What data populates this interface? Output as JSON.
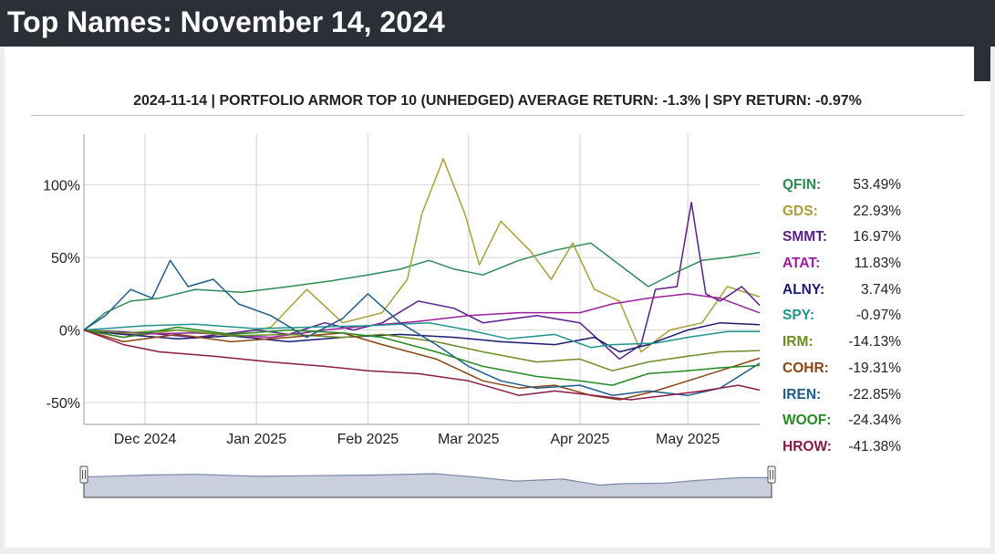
{
  "page": {
    "title": "Top Names: November 14, 2024"
  },
  "chart_data": {
    "type": "line",
    "title": "2024-11-14 | PORTFOLIO ARMOR TOP 10 (UNHEDGED) AVERAGE RETURN: -1.3% | SPY RETURN: -0.97%",
    "xlabel": "",
    "ylabel": "",
    "x_range": [
      "2024-11-14",
      "2025-05-21"
    ],
    "ylim": [
      -65,
      135
    ],
    "y_ticks": [
      -50,
      0,
      50,
      100
    ],
    "y_tick_labels": [
      "-50%",
      "0%",
      "50%",
      "100%"
    ],
    "x_ticks": [
      "2024-12-01",
      "2025-01-01",
      "2025-02-01",
      "2025-03-01",
      "2025-04-01",
      "2025-05-01"
    ],
    "x_tick_labels": [
      "Dec 2024",
      "Jan 2025",
      "Feb 2025",
      "Mar 2025",
      "Apr 2025",
      "May 2025"
    ],
    "grid": true,
    "legend_position": "right",
    "series": [
      {
        "name": "QFIN",
        "value_label": "53.49%",
        "color": "#2e8b57",
        "points": [
          [
            "2024-11-14",
            0
          ],
          [
            "2024-11-20",
            12
          ],
          [
            "2024-11-27",
            20
          ],
          [
            "2024-12-05",
            22
          ],
          [
            "2024-12-15",
            28
          ],
          [
            "2024-12-28",
            26
          ],
          [
            "2025-01-10",
            30
          ],
          [
            "2025-01-22",
            34
          ],
          [
            "2025-02-01",
            38
          ],
          [
            "2025-02-10",
            42
          ],
          [
            "2025-02-18",
            48
          ],
          [
            "2025-02-25",
            42
          ],
          [
            "2025-03-05",
            38
          ],
          [
            "2025-03-15",
            48
          ],
          [
            "2025-03-25",
            55
          ],
          [
            "2025-04-04",
            60
          ],
          [
            "2025-04-12",
            45
          ],
          [
            "2025-04-20",
            30
          ],
          [
            "2025-04-28",
            40
          ],
          [
            "2025-05-05",
            48
          ],
          [
            "2025-05-12",
            50
          ],
          [
            "2025-05-21",
            53.49
          ]
        ]
      },
      {
        "name": "GDS",
        "value_label": "22.93%",
        "color": "#a8a037",
        "points": [
          [
            "2024-11-14",
            0
          ],
          [
            "2024-11-25",
            -5
          ],
          [
            "2024-12-10",
            0
          ],
          [
            "2024-12-25",
            -3
          ],
          [
            "2025-01-05",
            2
          ],
          [
            "2025-01-15",
            28
          ],
          [
            "2025-01-25",
            5
          ],
          [
            "2025-02-05",
            12
          ],
          [
            "2025-02-12",
            35
          ],
          [
            "2025-02-16",
            80
          ],
          [
            "2025-02-22",
            118
          ],
          [
            "2025-02-28",
            80
          ],
          [
            "2025-03-04",
            45
          ],
          [
            "2025-03-10",
            75
          ],
          [
            "2025-03-18",
            55
          ],
          [
            "2025-03-24",
            35
          ],
          [
            "2025-03-30",
            60
          ],
          [
            "2025-04-05",
            28
          ],
          [
            "2025-04-12",
            20
          ],
          [
            "2025-04-18",
            -15
          ],
          [
            "2025-04-26",
            0
          ],
          [
            "2025-05-05",
            5
          ],
          [
            "2025-05-12",
            30
          ],
          [
            "2025-05-21",
            22.93
          ]
        ]
      },
      {
        "name": "SMMT",
        "value_label": "16.97%",
        "color": "#5b1f8a",
        "points": [
          [
            "2024-11-14",
            0
          ],
          [
            "2024-12-01",
            -2
          ],
          [
            "2024-12-15",
            -5
          ],
          [
            "2025-01-01",
            0
          ],
          [
            "2025-01-10",
            -3
          ],
          [
            "2025-01-20",
            5
          ],
          [
            "2025-01-28",
            0
          ],
          [
            "2025-02-05",
            5
          ],
          [
            "2025-02-15",
            20
          ],
          [
            "2025-02-25",
            15
          ],
          [
            "2025-03-05",
            5
          ],
          [
            "2025-03-20",
            10
          ],
          [
            "2025-04-01",
            5
          ],
          [
            "2025-04-12",
            -20
          ],
          [
            "2025-04-18",
            -10
          ],
          [
            "2025-04-22",
            28
          ],
          [
            "2025-04-28",
            30
          ],
          [
            "2025-05-02",
            88
          ],
          [
            "2025-05-06",
            25
          ],
          [
            "2025-05-10",
            20
          ],
          [
            "2025-05-16",
            30
          ],
          [
            "2025-05-21",
            16.97
          ]
        ]
      },
      {
        "name": "ATAT",
        "value_label": "11.83%",
        "color": "#9b1f9b",
        "points": [
          [
            "2024-11-14",
            0
          ],
          [
            "2024-11-25",
            -3
          ],
          [
            "2024-12-15",
            -2
          ],
          [
            "2025-01-05",
            -5
          ],
          [
            "2025-01-20",
            0
          ],
          [
            "2025-02-01",
            3
          ],
          [
            "2025-02-15",
            6
          ],
          [
            "2025-03-01",
            10
          ],
          [
            "2025-03-15",
            12
          ],
          [
            "2025-04-01",
            12
          ],
          [
            "2025-04-10",
            18
          ],
          [
            "2025-04-20",
            22
          ],
          [
            "2025-05-01",
            25
          ],
          [
            "2025-05-10",
            22
          ],
          [
            "2025-05-21",
            11.83
          ]
        ]
      },
      {
        "name": "ALNY",
        "value_label": "3.74%",
        "color": "#1a1a70",
        "points": [
          [
            "2024-11-14",
            0
          ],
          [
            "2024-11-25",
            -3
          ],
          [
            "2024-12-10",
            -6
          ],
          [
            "2024-12-25",
            -4
          ],
          [
            "2025-01-10",
            -8
          ],
          [
            "2025-01-25",
            -5
          ],
          [
            "2025-02-10",
            -3
          ],
          [
            "2025-02-25",
            -5
          ],
          [
            "2025-03-10",
            -8
          ],
          [
            "2025-03-25",
            -10
          ],
          [
            "2025-04-05",
            -5
          ],
          [
            "2025-04-12",
            -15
          ],
          [
            "2025-04-20",
            -10
          ],
          [
            "2025-05-01",
            0
          ],
          [
            "2025-05-10",
            5
          ],
          [
            "2025-05-21",
            3.74
          ]
        ]
      },
      {
        "name": "SPY",
        "value_label": "-0.97%",
        "color": "#20948e",
        "points": [
          [
            "2024-11-14",
            0
          ],
          [
            "2024-12-01",
            3
          ],
          [
            "2024-12-15",
            4
          ],
          [
            "2025-01-01",
            1
          ],
          [
            "2025-01-15",
            2
          ],
          [
            "2025-02-01",
            3
          ],
          [
            "2025-02-18",
            5
          ],
          [
            "2025-03-01",
            0
          ],
          [
            "2025-03-12",
            -6
          ],
          [
            "2025-03-25",
            -3
          ],
          [
            "2025-04-04",
            -12
          ],
          [
            "2025-04-10",
            -10
          ],
          [
            "2025-04-22",
            -9
          ],
          [
            "2025-05-01",
            -5
          ],
          [
            "2025-05-12",
            -1
          ],
          [
            "2025-05-21",
            -0.97
          ]
        ]
      },
      {
        "name": "IRM",
        "value_label": "-14.13%",
        "color": "#6b8e23",
        "points": [
          [
            "2024-11-14",
            0
          ],
          [
            "2024-11-25",
            -2
          ],
          [
            "2024-12-10",
            0
          ],
          [
            "2024-12-25",
            -4
          ],
          [
            "2025-01-10",
            -3
          ],
          [
            "2025-01-25",
            -5
          ],
          [
            "2025-02-05",
            -3
          ],
          [
            "2025-02-20",
            -8
          ],
          [
            "2025-03-05",
            -15
          ],
          [
            "2025-03-20",
            -22
          ],
          [
            "2025-04-01",
            -20
          ],
          [
            "2025-04-10",
            -28
          ],
          [
            "2025-04-20",
            -22
          ],
          [
            "2025-05-01",
            -18
          ],
          [
            "2025-05-10",
            -15
          ],
          [
            "2025-05-21",
            -14.13
          ]
        ]
      },
      {
        "name": "COHR",
        "value_label": "-19.31%",
        "color": "#8b4513",
        "points": [
          [
            "2024-11-14",
            0
          ],
          [
            "2024-11-25",
            -8
          ],
          [
            "2024-12-10",
            -3
          ],
          [
            "2024-12-25",
            -8
          ],
          [
            "2025-01-10",
            -5
          ],
          [
            "2025-01-25",
            -2
          ],
          [
            "2025-02-05",
            -10
          ],
          [
            "2025-02-20",
            -20
          ],
          [
            "2025-03-05",
            -35
          ],
          [
            "2025-03-15",
            -40
          ],
          [
            "2025-03-25",
            -38
          ],
          [
            "2025-04-04",
            -45
          ],
          [
            "2025-04-12",
            -48
          ],
          [
            "2025-04-22",
            -42
          ],
          [
            "2025-05-01",
            -35
          ],
          [
            "2025-05-10",
            -28
          ],
          [
            "2025-05-21",
            -19.31
          ]
        ]
      },
      {
        "name": "IREN",
        "value_label": "-22.85%",
        "color": "#1f5c8a",
        "points": [
          [
            "2024-11-14",
            0
          ],
          [
            "2024-11-20",
            10
          ],
          [
            "2024-11-27",
            28
          ],
          [
            "2024-12-03",
            22
          ],
          [
            "2024-12-08",
            48
          ],
          [
            "2024-12-13",
            30
          ],
          [
            "2024-12-20",
            35
          ],
          [
            "2024-12-27",
            18
          ],
          [
            "2025-01-05",
            10
          ],
          [
            "2025-01-15",
            -5
          ],
          [
            "2025-01-25",
            8
          ],
          [
            "2025-02-01",
            25
          ],
          [
            "2025-02-10",
            5
          ],
          [
            "2025-02-20",
            -10
          ],
          [
            "2025-03-01",
            -25
          ],
          [
            "2025-03-10",
            -35
          ],
          [
            "2025-03-20",
            -40
          ],
          [
            "2025-04-01",
            -38
          ],
          [
            "2025-04-10",
            -45
          ],
          [
            "2025-04-20",
            -42
          ],
          [
            "2025-05-01",
            -45
          ],
          [
            "2025-05-10",
            -40
          ],
          [
            "2025-05-21",
            -22.85
          ]
        ]
      },
      {
        "name": "WOOF",
        "value_label": "-24.34%",
        "color": "#228b22",
        "points": [
          [
            "2024-11-14",
            0
          ],
          [
            "2024-11-25",
            -5
          ],
          [
            "2024-12-10",
            2
          ],
          [
            "2024-12-25",
            -3
          ],
          [
            "2025-01-10",
            0
          ],
          [
            "2025-01-25",
            -2
          ],
          [
            "2025-02-05",
            -5
          ],
          [
            "2025-02-20",
            -15
          ],
          [
            "2025-03-05",
            -25
          ],
          [
            "2025-03-20",
            -32
          ],
          [
            "2025-04-01",
            -35
          ],
          [
            "2025-04-10",
            -38
          ],
          [
            "2025-04-20",
            -30
          ],
          [
            "2025-05-01",
            -28
          ],
          [
            "2025-05-10",
            -26
          ],
          [
            "2025-05-21",
            -24.34
          ]
        ]
      },
      {
        "name": "HROW",
        "value_label": "-41.38%",
        "color": "#8b1a4a",
        "points": [
          [
            "2024-11-14",
            0
          ],
          [
            "2024-11-25",
            -10
          ],
          [
            "2024-12-05",
            -15
          ],
          [
            "2024-12-20",
            -18
          ],
          [
            "2025-01-05",
            -22
          ],
          [
            "2025-01-20",
            -25
          ],
          [
            "2025-02-01",
            -28
          ],
          [
            "2025-02-15",
            -30
          ],
          [
            "2025-03-01",
            -35
          ],
          [
            "2025-03-15",
            -45
          ],
          [
            "2025-03-25",
            -42
          ],
          [
            "2025-04-05",
            -45
          ],
          [
            "2025-04-15",
            -48
          ],
          [
            "2025-04-25",
            -45
          ],
          [
            "2025-05-05",
            -42
          ],
          [
            "2025-05-15",
            -38
          ],
          [
            "2025-05-21",
            -41.38
          ]
        ]
      }
    ],
    "navigator": {
      "series_name": "SPY"
    }
  }
}
